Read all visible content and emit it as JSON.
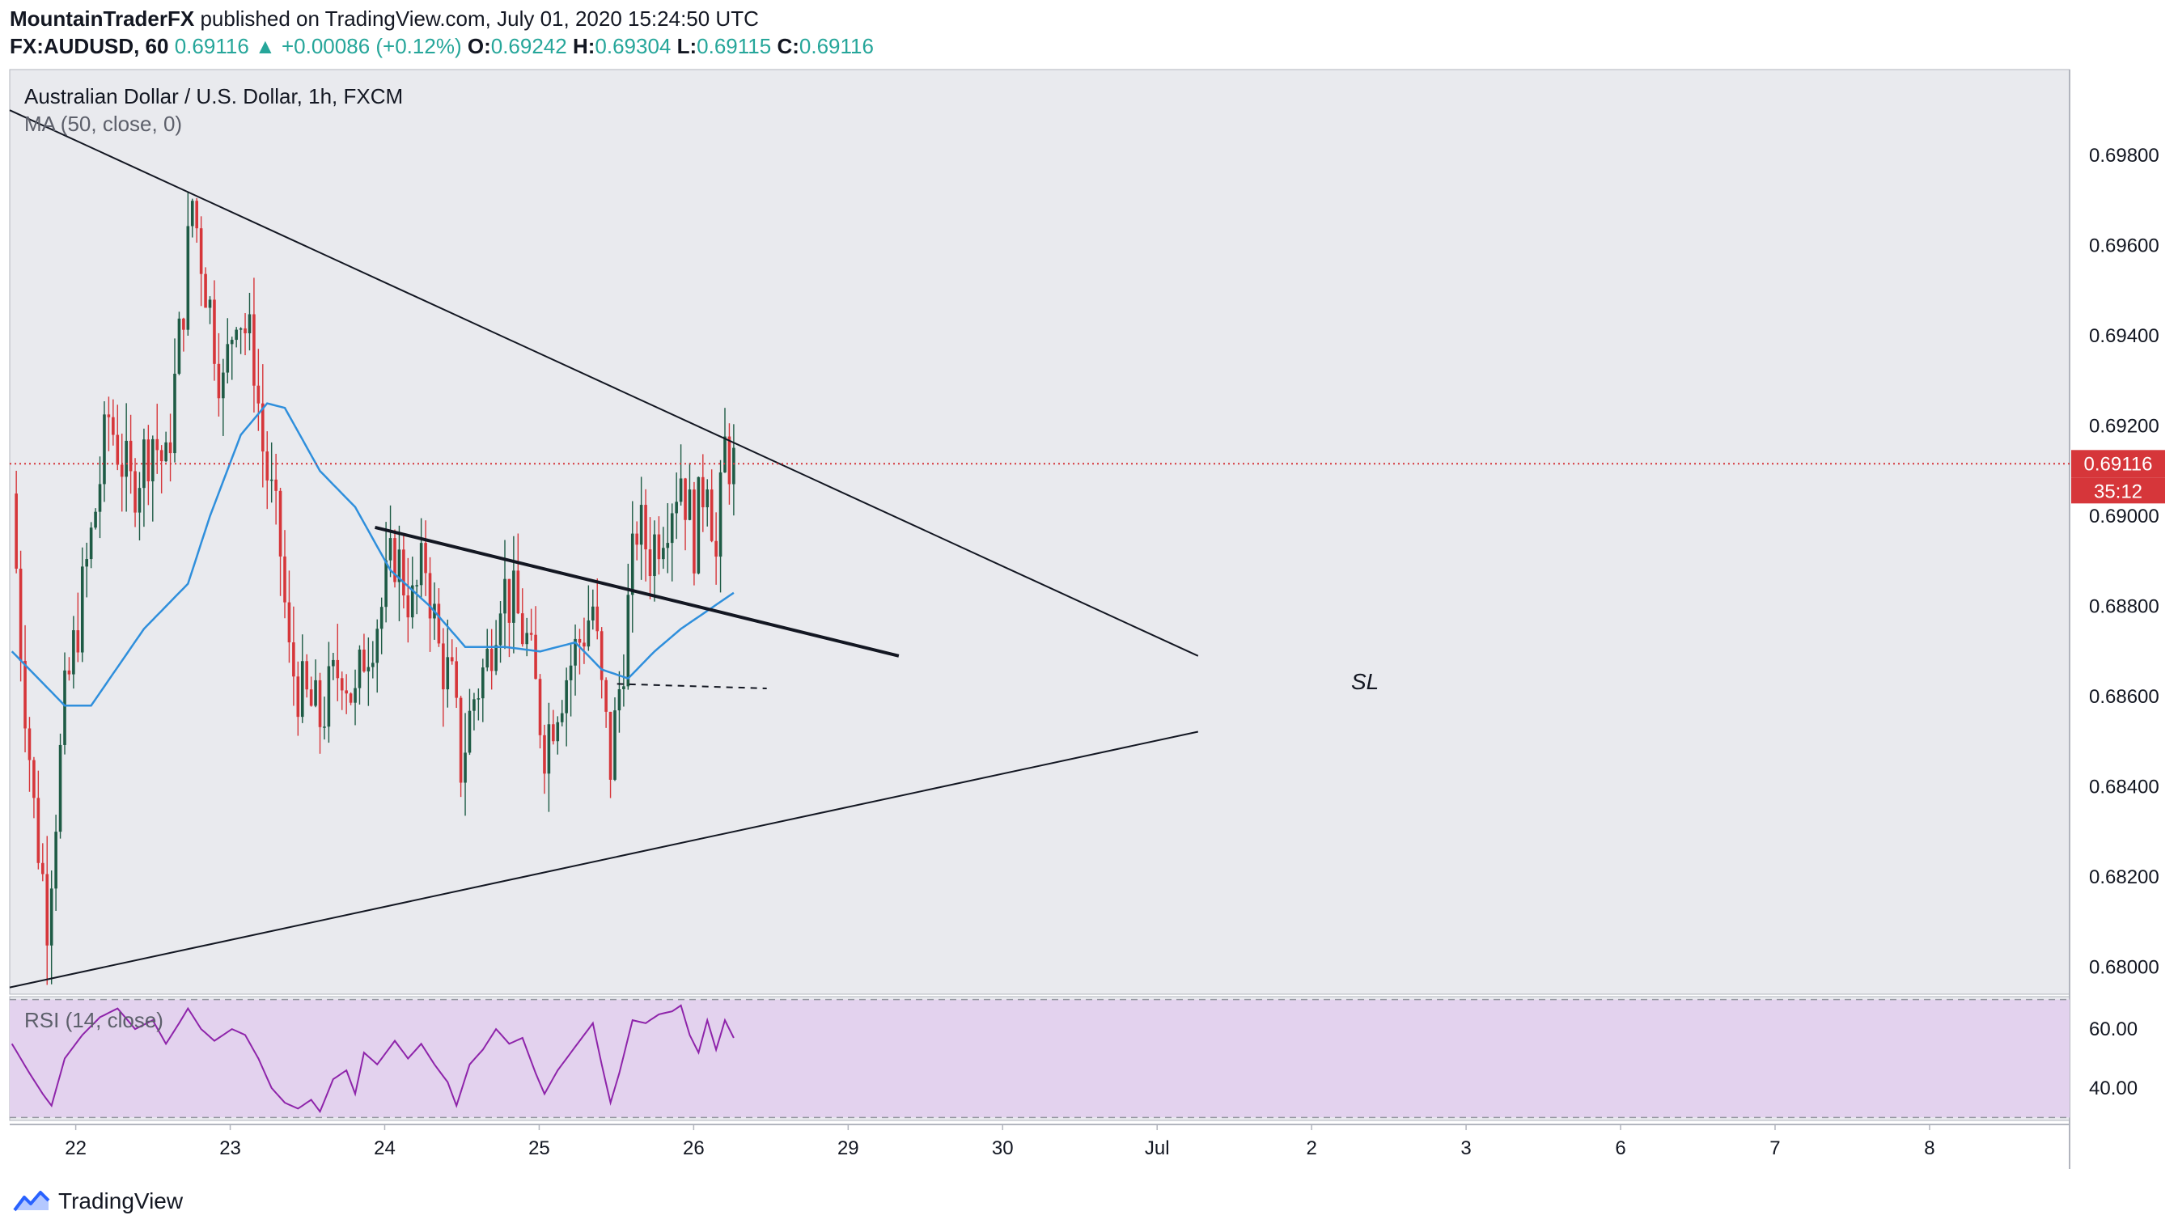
{
  "header": {
    "author": "MountainTraderFX",
    "published_text": " published on TradingView.com, July 01, 2020 15:24:50 UTC",
    "symbol": "FX:AUDUSD, 60",
    "last": "0.69116",
    "change": "+0.00086 (+0.12%)",
    "open_label": "O:",
    "open": "0.69242",
    "high_label": "H:",
    "high": "0.69304",
    "low_label": "L:",
    "low": "0.69115",
    "close_label": "C:",
    "close": "0.69116"
  },
  "legend": {
    "series_title": "Australian Dollar / U.S. Dollar, 1h, FXCM",
    "ma_label": "MA (50, close, 0)",
    "rsi_label": "RSI (14, close)"
  },
  "annotations": {
    "stop_loss": "SL"
  },
  "price_tags": {
    "last_price": "0.69116",
    "countdown": "35:12"
  },
  "footer": {
    "brand": "TradingView"
  },
  "colors": {
    "pane_bg": "#e9eaee",
    "bull": "#1e5b45",
    "bear": "#d6363a",
    "ma": "#2f8fdc",
    "rsi": "#8e24aa",
    "rsi_band": "#e3d2ee",
    "price_line": "#d6363a",
    "axis_text": "#131722"
  },
  "chart_data": [
    {
      "type": "candlestick",
      "title": "Australian Dollar / U.S. Dollar, 1h, FXCM",
      "xlabel": "",
      "ylabel": "",
      "x_ticks": [
        "22",
        "23",
        "24",
        "25",
        "26",
        "29",
        "30",
        "Jul",
        "2",
        "3",
        "6",
        "7",
        "8"
      ],
      "y_ticks": [
        "0.68000",
        "0.68200",
        "0.68400",
        "0.68600",
        "0.68800",
        "0.69000",
        "0.69200",
        "0.69400",
        "0.69600",
        "0.69800"
      ],
      "ylim": [
        0.6794,
        0.6999
      ],
      "last_price": 0.69116,
      "grid": false,
      "anchors": [
        {
          "t": 0,
          "p": 0.6905
        },
        {
          "t": 2,
          "p": 0.6872
        },
        {
          "t": 5,
          "p": 0.6835
        },
        {
          "t": 8,
          "p": 0.6812
        },
        {
          "t": 12,
          "p": 0.6858
        },
        {
          "t": 18,
          "p": 0.6895
        },
        {
          "t": 22,
          "p": 0.6922
        },
        {
          "t": 27,
          "p": 0.6906
        },
        {
          "t": 32,
          "p": 0.6918
        },
        {
          "t": 35,
          "p": 0.691
        },
        {
          "t": 39,
          "p": 0.6948
        },
        {
          "t": 41,
          "p": 0.697
        },
        {
          "t": 44,
          "p": 0.6952
        },
        {
          "t": 48,
          "p": 0.6928
        },
        {
          "t": 51,
          "p": 0.6948
        },
        {
          "t": 55,
          "p": 0.6935
        },
        {
          "t": 57,
          "p": 0.6915
        },
        {
          "t": 61,
          "p": 0.6892
        },
        {
          "t": 63,
          "p": 0.6868
        },
        {
          "t": 66,
          "p": 0.686
        },
        {
          "t": 70,
          "p": 0.6855
        },
        {
          "t": 75,
          "p": 0.6868
        },
        {
          "t": 78,
          "p": 0.6858
        },
        {
          "t": 80,
          "p": 0.687
        },
        {
          "t": 84,
          "p": 0.688
        },
        {
          "t": 87,
          "p": 0.6892
        },
        {
          "t": 91,
          "p": 0.688
        },
        {
          "t": 94,
          "p": 0.689
        },
        {
          "t": 97,
          "p": 0.687
        },
        {
          "t": 100,
          "p": 0.6862
        },
        {
          "t": 102,
          "p": 0.6845
        },
        {
          "t": 105,
          "p": 0.686
        },
        {
          "t": 108,
          "p": 0.6868
        },
        {
          "t": 111,
          "p": 0.6885
        },
        {
          "t": 114,
          "p": 0.688
        },
        {
          "t": 117,
          "p": 0.6872
        },
        {
          "t": 121,
          "p": 0.685
        },
        {
          "t": 124,
          "p": 0.686
        },
        {
          "t": 128,
          "p": 0.687
        },
        {
          "t": 132,
          "p": 0.688
        },
        {
          "t": 134,
          "p": 0.686
        },
        {
          "t": 136,
          "p": 0.6845
        },
        {
          "t": 139,
          "p": 0.687
        },
        {
          "t": 142,
          "p": 0.6898
        },
        {
          "t": 145,
          "p": 0.6892
        },
        {
          "t": 149,
          "p": 0.6902
        },
        {
          "t": 152,
          "p": 0.691
        },
        {
          "t": 155,
          "p": 0.6895
        },
        {
          "t": 158,
          "p": 0.6912
        },
        {
          "t": 160,
          "p": 0.689
        },
        {
          "t": 162,
          "p": 0.6915
        },
        {
          "t": 164,
          "p": 0.6911
        }
      ],
      "ma50_anchors": [
        {
          "t": 0,
          "p": 0.687
        },
        {
          "t": 12,
          "p": 0.6858
        },
        {
          "t": 18,
          "p": 0.6858
        },
        {
          "t": 30,
          "p": 0.6875
        },
        {
          "t": 40,
          "p": 0.6885
        },
        {
          "t": 45,
          "p": 0.69
        },
        {
          "t": 52,
          "p": 0.6918
        },
        {
          "t": 58,
          "p": 0.6925
        },
        {
          "t": 62,
          "p": 0.6924
        },
        {
          "t": 70,
          "p": 0.691
        },
        {
          "t": 78,
          "p": 0.6902
        },
        {
          "t": 86,
          "p": 0.6888
        },
        {
          "t": 95,
          "p": 0.688
        },
        {
          "t": 103,
          "p": 0.6871
        },
        {
          "t": 112,
          "p": 0.6871
        },
        {
          "t": 120,
          "p": 0.687
        },
        {
          "t": 128,
          "p": 0.6872
        },
        {
          "t": 134,
          "p": 0.6866
        },
        {
          "t": 140,
          "p": 0.6864
        },
        {
          "t": 146,
          "p": 0.687
        },
        {
          "t": 152,
          "p": 0.6875
        },
        {
          "t": 158,
          "p": 0.6879
        },
        {
          "t": 164,
          "p": 0.6883
        }
      ],
      "trendlines": [
        {
          "name": "upper",
          "t1": 0,
          "p1": 0.699,
          "t2": 270,
          "p2": 0.6869
        },
        {
          "name": "lower",
          "t1": 0,
          "p1": 0.67955,
          "t2": 270,
          "p2": 0.68522
        },
        {
          "name": "neckline",
          "t1": 83,
          "p1": 0.68975,
          "t2": 202,
          "p2": 0.6869
        },
        {
          "name": "stop-loss",
          "t1": 138,
          "p1": 0.68628,
          "t2": 172,
          "p2": 0.68618
        }
      ]
    },
    {
      "type": "line",
      "title": "RSI (14, close)",
      "xlabel": "",
      "ylabel": "",
      "y_ticks": [
        "40.00",
        "60.00"
      ],
      "ylim": [
        29,
        71
      ],
      "bands": [
        30,
        70
      ],
      "anchors": [
        {
          "t": 0,
          "p": 55
        },
        {
          "t": 4,
          "p": 45
        },
        {
          "t": 7,
          "p": 38
        },
        {
          "t": 9,
          "p": 34
        },
        {
          "t": 12,
          "p": 50
        },
        {
          "t": 16,
          "p": 58
        },
        {
          "t": 20,
          "p": 64
        },
        {
          "t": 24,
          "p": 67
        },
        {
          "t": 28,
          "p": 60
        },
        {
          "t": 32,
          "p": 63
        },
        {
          "t": 35,
          "p": 55
        },
        {
          "t": 38,
          "p": 62
        },
        {
          "t": 40,
          "p": 67
        },
        {
          "t": 43,
          "p": 60
        },
        {
          "t": 46,
          "p": 56
        },
        {
          "t": 50,
          "p": 60
        },
        {
          "t": 53,
          "p": 58
        },
        {
          "t": 56,
          "p": 50
        },
        {
          "t": 59,
          "p": 40
        },
        {
          "t": 62,
          "p": 35
        },
        {
          "t": 65,
          "p": 33
        },
        {
          "t": 68,
          "p": 36
        },
        {
          "t": 70,
          "p": 32
        },
        {
          "t": 73,
          "p": 43
        },
        {
          "t": 76,
          "p": 46
        },
        {
          "t": 78,
          "p": 38
        },
        {
          "t": 80,
          "p": 52
        },
        {
          "t": 83,
          "p": 48
        },
        {
          "t": 87,
          "p": 56
        },
        {
          "t": 90,
          "p": 50
        },
        {
          "t": 93,
          "p": 55
        },
        {
          "t": 96,
          "p": 48
        },
        {
          "t": 99,
          "p": 42
        },
        {
          "t": 101,
          "p": 34
        },
        {
          "t": 104,
          "p": 48
        },
        {
          "t": 107,
          "p": 53
        },
        {
          "t": 110,
          "p": 60
        },
        {
          "t": 113,
          "p": 55
        },
        {
          "t": 116,
          "p": 57
        },
        {
          "t": 119,
          "p": 45
        },
        {
          "t": 121,
          "p": 38
        },
        {
          "t": 124,
          "p": 46
        },
        {
          "t": 127,
          "p": 52
        },
        {
          "t": 130,
          "p": 58
        },
        {
          "t": 132,
          "p": 62
        },
        {
          "t": 134,
          "p": 48
        },
        {
          "t": 136,
          "p": 35
        },
        {
          "t": 138,
          "p": 45
        },
        {
          "t": 141,
          "p": 63
        },
        {
          "t": 144,
          "p": 62
        },
        {
          "t": 147,
          "p": 65
        },
        {
          "t": 150,
          "p": 66
        },
        {
          "t": 152,
          "p": 68
        },
        {
          "t": 154,
          "p": 58
        },
        {
          "t": 156,
          "p": 52
        },
        {
          "t": 158,
          "p": 63
        },
        {
          "t": 160,
          "p": 53
        },
        {
          "t": 162,
          "p": 63
        },
        {
          "t": 164,
          "p": 57
        }
      ]
    }
  ]
}
